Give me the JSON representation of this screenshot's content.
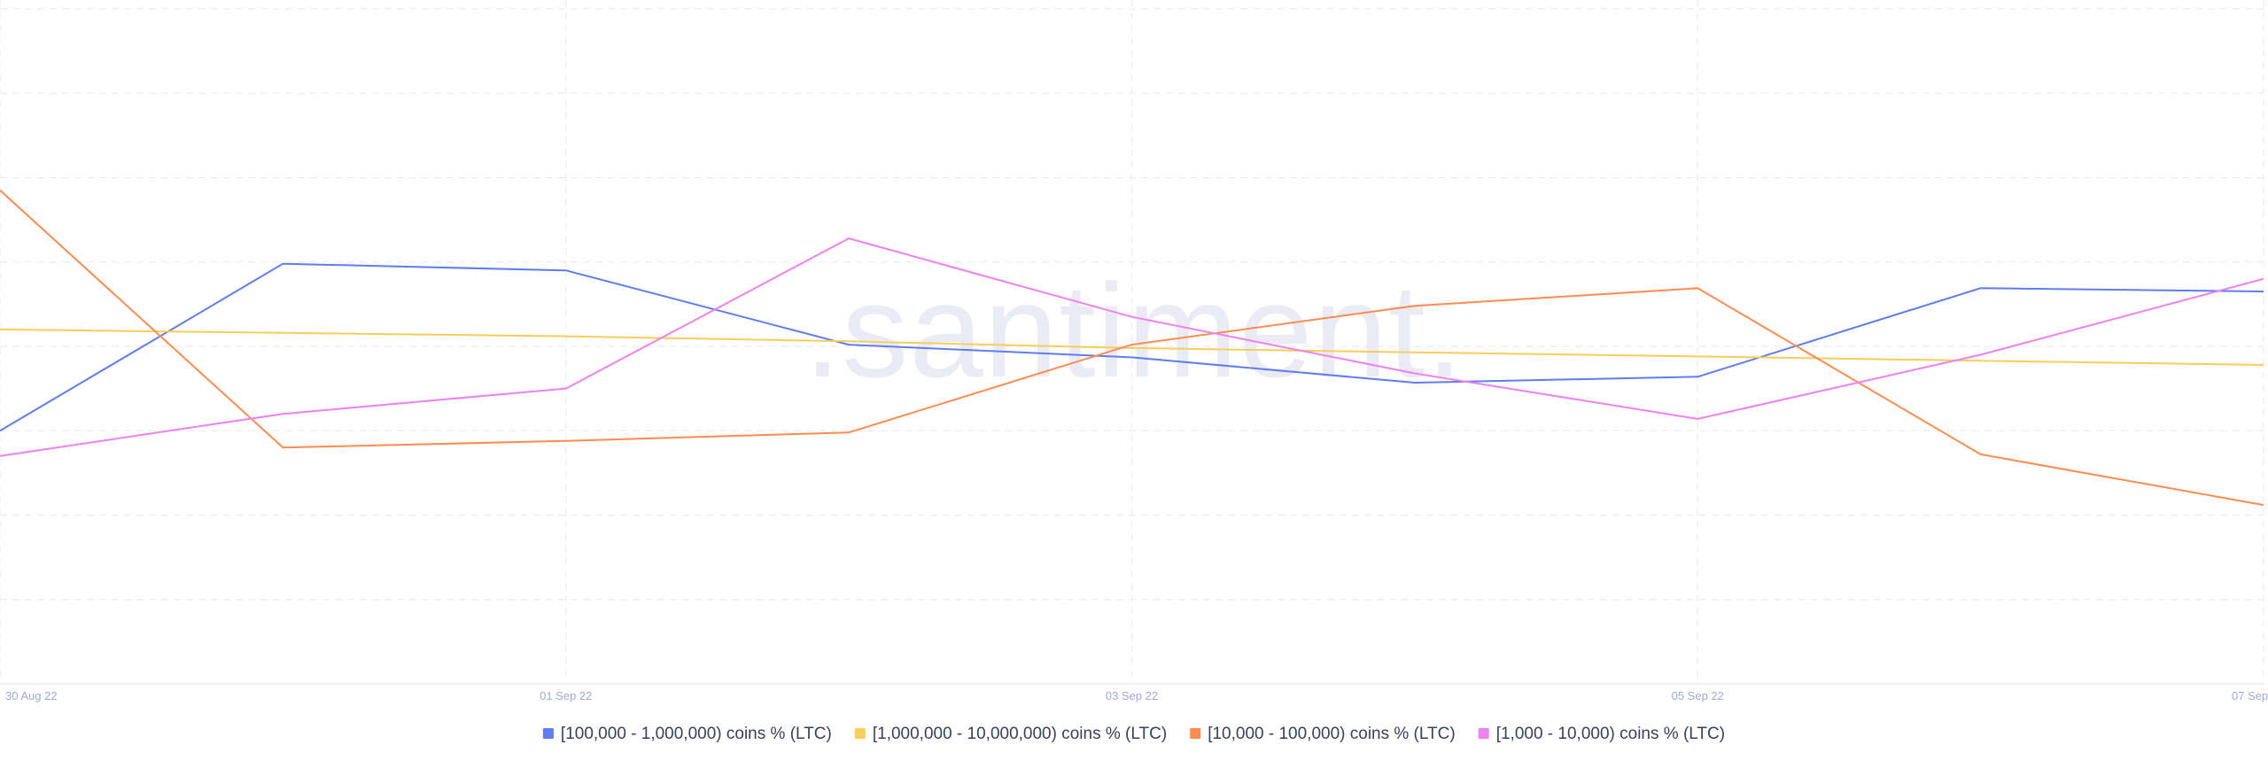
{
  "watermark": ".santiment.",
  "chart_data": {
    "type": "line",
    "x": [
      "30 Aug 22",
      "31 Aug 22",
      "01 Sep 22",
      "02 Sep 22",
      "03 Sep 22",
      "04 Sep 22",
      "05 Sep 22",
      "06 Sep 22",
      "07 Sep 22"
    ],
    "x_tick_labels": [
      "30 Aug 22",
      "01 Sep 22",
      "03 Sep 22",
      "05 Sep 22",
      "07 Sep"
    ],
    "x_tick_index": [
      0,
      2,
      4,
      6,
      8
    ],
    "ylim": [
      0,
      8
    ],
    "y_axis_labels_shown": false,
    "grid": true,
    "legend_position": "bottom-center",
    "series": [
      {
        "name": "[100,000  - 1,000,000) coins % (LTC)",
        "color": "#5f7cf0",
        "values": [
          3.0,
          4.98,
          4.9,
          4.02,
          3.87,
          3.57,
          3.64,
          4.69,
          4.65
        ]
      },
      {
        "name": "[1,000,000 - 10,000,000) coins % (LTC)",
        "color": "#f7ce5a",
        "values": [
          4.2,
          4.16,
          4.12,
          4.06,
          3.98,
          3.93,
          3.88,
          3.83,
          3.78
        ]
      },
      {
        "name": "[10,000 - 100,000) coins % (LTC)",
        "color": "#ff8c4f",
        "values": [
          5.85,
          2.8,
          2.88,
          2.98,
          4.02,
          4.48,
          4.69,
          2.72,
          2.12
        ]
      },
      {
        "name": "[1,000 - 10,000) coins % (LTC)",
        "color": "#ee82ee",
        "values": [
          2.7,
          3.2,
          3.5,
          5.28,
          4.35,
          3.68,
          3.14,
          3.9,
          4.8
        ]
      }
    ]
  }
}
